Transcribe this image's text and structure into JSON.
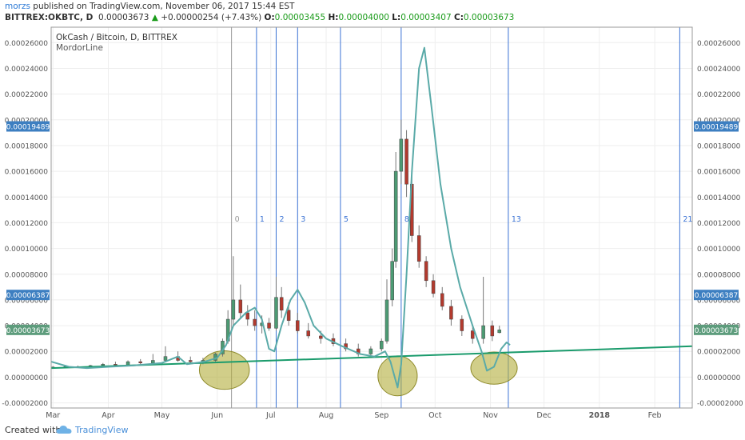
{
  "header": {
    "author": "morzs",
    "published_text": "published on TradingView.com, November 06, 2017 15:44 EST",
    "symbol": "BITTREX:OKBTC, D",
    "last": "0.00003673",
    "change": "+0.00000254 (+7.43%)",
    "o_label": "O:",
    "o": "0.00003455",
    "h_label": "H:",
    "h": "0.00004000",
    "l_label": "L:",
    "l": "0.00003407",
    "c_label": "C:",
    "c": "0.00003673"
  },
  "footer": {
    "created_with": "Created with",
    "brand": "TradingView"
  },
  "chart_data": {
    "type": "candlestick",
    "title": "OkCash / Bitcoin, D, BITTREX",
    "subtitle": "MordorLine",
    "ylim": [
      -2.4e-05,
      0.000272
    ],
    "y_ticks": [
      "-0.00002000",
      "0.00000000",
      "0.00002000",
      "0.00004000",
      "0.00006000",
      "0.00008000",
      "0.00010000",
      "0.00012000",
      "0.00014000",
      "0.00016000",
      "0.00018000",
      "0.00020000",
      "0.00022000",
      "0.00024000",
      "0.00026000"
    ],
    "y_tick_values": [
      -2e-05,
      0,
      2e-05,
      4e-05,
      6e-05,
      8e-05,
      0.0001,
      0.00012,
      0.00014,
      0.00016,
      0.00018,
      0.0002,
      0.00022,
      0.00024,
      0.00026
    ],
    "x_ticks": [
      "Mar",
      "Apr",
      "May",
      "Jun",
      "Jul",
      "Aug",
      "Sep",
      "Oct",
      "Nov",
      "Dec",
      "2018",
      "Feb"
    ],
    "x_tick_dates": [
      "2017-03-01",
      "2017-04-01",
      "2017-05-01",
      "2017-06-01",
      "2017-07-01",
      "2017-08-01",
      "2017-09-01",
      "2017-10-01",
      "2017-11-01",
      "2017-12-01",
      "2018-01-01",
      "2018-02-01"
    ],
    "x_range": [
      "2017-02-28",
      "2018-02-22"
    ],
    "price_labels": [
      {
        "text": "0.00019489",
        "value": 0.00019489,
        "color": "#3d7fc1"
      },
      {
        "text": "0.00006387",
        "value": 6.387e-05,
        "color": "#3d7fc1"
      },
      {
        "text": "0.00003673",
        "value": 3.673e-05,
        "color": "#5d9c7c"
      }
    ],
    "fib_lines": [
      {
        "label": "0",
        "date": "2017-06-09",
        "color": "#999999"
      },
      {
        "label": "1",
        "date": "2017-06-23",
        "color": "#3b73d4"
      },
      {
        "label": "2",
        "date": "2017-07-04",
        "color": "#3b73d4"
      },
      {
        "label": "3",
        "date": "2017-07-16",
        "color": "#3b73d4"
      },
      {
        "label": "5",
        "date": "2017-08-09",
        "color": "#3b73d4"
      },
      {
        "label": "8",
        "date": "2017-09-12",
        "color": "#3b73d4"
      },
      {
        "label": "13",
        "date": "2017-11-11",
        "color": "#3b73d4"
      },
      {
        "label": "21",
        "date": "2018-02-15",
        "color": "#3b73d4"
      }
    ],
    "trendline": {
      "start": [
        "2017-02-28",
        7e-06
      ],
      "end": [
        "2018-02-22",
        2.4e-05
      ],
      "color": "#1a9b6c"
    },
    "ellipses": [
      {
        "center": [
          "2017-06-05",
          5.5e-06
        ],
        "rx_days": 14,
        "ry": 1.5e-05
      },
      {
        "center": [
          "2017-09-10",
          1e-06
        ],
        "rx_days": 11,
        "ry": 1.55e-05
      },
      {
        "center": [
          "2017-11-03",
          7e-06
        ],
        "rx_days": 13,
        "ry": 1.25e-05
      }
    ],
    "indicator": {
      "name": "MordorLine",
      "color": "#5aaaa8",
      "points": [
        [
          "2017-02-28",
          1.2e-05
        ],
        [
          "2017-03-10",
          8e-06
        ],
        [
          "2017-03-20",
          7e-06
        ],
        [
          "2017-04-01",
          8e-06
        ],
        [
          "2017-04-15",
          9e-06
        ],
        [
          "2017-05-01",
          1.1e-05
        ],
        [
          "2017-05-10",
          1.6e-05
        ],
        [
          "2017-05-15",
          1e-05
        ],
        [
          "2017-05-25",
          1.2e-05
        ],
        [
          "2017-06-01",
          1.5e-05
        ],
        [
          "2017-06-06",
          2.5e-05
        ],
        [
          "2017-06-10",
          4e-05
        ],
        [
          "2017-06-17",
          5e-05
        ],
        [
          "2017-06-22",
          5.4e-05
        ],
        [
          "2017-06-26",
          4.5e-05
        ],
        [
          "2017-06-30",
          2.2e-05
        ],
        [
          "2017-07-03",
          2e-05
        ],
        [
          "2017-07-07",
          4e-05
        ],
        [
          "2017-07-12",
          6e-05
        ],
        [
          "2017-07-16",
          6.8e-05
        ],
        [
          "2017-07-20",
          5.8e-05
        ],
        [
          "2017-07-25",
          4e-05
        ],
        [
          "2017-08-01",
          3e-05
        ],
        [
          "2017-08-10",
          2.4e-05
        ],
        [
          "2017-08-20",
          1.8e-05
        ],
        [
          "2017-08-28",
          1.6e-05
        ],
        [
          "2017-09-03",
          2e-05
        ],
        [
          "2017-09-06",
          1.2e-05
        ],
        [
          "2017-09-08",
          2e-06
        ],
        [
          "2017-09-10",
          -8e-06
        ],
        [
          "2017-09-12",
          1e-05
        ],
        [
          "2017-09-15",
          8e-05
        ],
        [
          "2017-09-18",
          0.00016
        ],
        [
          "2017-09-22",
          0.00024
        ],
        [
          "2017-09-25",
          0.000256
        ],
        [
          "2017-09-29",
          0.00021
        ],
        [
          "2017-10-04",
          0.00015
        ],
        [
          "2017-10-10",
          0.0001
        ],
        [
          "2017-10-15",
          7e-05
        ],
        [
          "2017-10-22",
          4e-05
        ],
        [
          "2017-10-27",
          2e-05
        ],
        [
          "2017-10-30",
          5e-06
        ],
        [
          "2017-11-03",
          8e-06
        ],
        [
          "2017-11-07",
          2.2e-05
        ],
        [
          "2017-11-10",
          2.7e-05
        ],
        [
          "2017-11-12",
          2.5e-05
        ]
      ]
    },
    "candles_series": [
      [
        "2017-03-01",
        7.8e-06,
        8.5e-06,
        7e-06,
        7.5e-06
      ],
      [
        "2017-03-08",
        7.5e-06,
        9e-06,
        7e-06,
        8.2e-06
      ],
      [
        "2017-03-15",
        8.2e-06,
        9e-06,
        7.2e-06,
        7.6e-06
      ],
      [
        "2017-03-22",
        7.6e-06,
        9.5e-06,
        7e-06,
        9e-06
      ],
      [
        "2017-03-29",
        9e-06,
        1.1e-05,
        8.5e-06,
        1e-05
      ],
      [
        "2017-04-05",
        1e-05,
        1.2e-05,
        8.8e-06,
        9.5e-06
      ],
      [
        "2017-04-12",
        9.5e-06,
        1.3e-05,
        9e-06,
        1.2e-05
      ],
      [
        "2017-04-19",
        1.2e-05,
        1.4e-05,
        1e-05,
        1.1e-05
      ],
      [
        "2017-04-26",
        1.1e-05,
        1.8e-05,
        1e-05,
        1.3e-05
      ],
      [
        "2017-05-03",
        1.3e-05,
        2.4e-05,
        1.2e-05,
        1.6e-05
      ],
      [
        "2017-05-10",
        1.6e-05,
        2e-05,
        1.2e-05,
        1.3e-05
      ],
      [
        "2017-05-17",
        1.3e-05,
        1.6e-05,
        1.1e-05,
        1.2e-05
      ],
      [
        "2017-05-24",
        1.2e-05,
        1.5e-05,
        1e-05,
        1.3e-05
      ],
      [
        "2017-05-31",
        1.3e-05,
        1.9e-05,
        1.2e-05,
        1.8e-05
      ],
      [
        "2017-06-04",
        1.8e-05,
        3e-05,
        1.6e-05,
        2.8e-05
      ],
      [
        "2017-06-07",
        2.8e-05,
        5.2e-05,
        2.6e-05,
        4.5e-05
      ],
      [
        "2017-06-10",
        4.5e-05,
        9.4e-05,
        4e-05,
        6e-05
      ],
      [
        "2017-06-14",
        6e-05,
        7.2e-05,
        4.5e-05,
        5e-05
      ],
      [
        "2017-06-18",
        5e-05,
        5.6e-05,
        4e-05,
        4.5e-05
      ],
      [
        "2017-06-22",
        4.5e-05,
        5.2e-05,
        3.6e-05,
        4e-05
      ],
      [
        "2017-06-26",
        4e-05,
        4.8e-05,
        3.4e-05,
        4.2e-05
      ],
      [
        "2017-06-30",
        4.2e-05,
        4.6e-05,
        3.6e-05,
        3.8e-05
      ],
      [
        "2017-07-04",
        3.8e-05,
        7.8e-05,
        3.6e-05,
        6.2e-05
      ],
      [
        "2017-07-07",
        6.2e-05,
        7e-05,
        4.6e-05,
        5.2e-05
      ],
      [
        "2017-07-11",
        5.2e-05,
        5.8e-05,
        4e-05,
        4.4e-05
      ],
      [
        "2017-07-16",
        4.4e-05,
        5e-05,
        3.4e-05,
        3.6e-05
      ],
      [
        "2017-07-22",
        3.6e-05,
        4.2e-05,
        3e-05,
        3.2e-05
      ],
      [
        "2017-07-29",
        3.2e-05,
        3.6e-05,
        2.6e-05,
        3e-05
      ],
      [
        "2017-08-05",
        3e-05,
        3.4e-05,
        2.4e-05,
        2.6e-05
      ],
      [
        "2017-08-12",
        2.6e-05,
        3e-05,
        2e-05,
        2.2e-05
      ],
      [
        "2017-08-19",
        2.2e-05,
        2.6e-05,
        1.6e-05,
        1.8e-05
      ],
      [
        "2017-08-26",
        1.8e-05,
        2.4e-05,
        1.6e-05,
        2.2e-05
      ],
      [
        "2017-09-01",
        2.2e-05,
        3e-05,
        2e-05,
        2.8e-05
      ],
      [
        "2017-09-04",
        2.8e-05,
        7.6e-05,
        2.6e-05,
        6e-05
      ],
      [
        "2017-09-07",
        6e-05,
        0.0001,
        5.5e-05,
        9e-05
      ],
      [
        "2017-09-09",
        9e-05,
        0.000175,
        8.5e-05,
        0.00016
      ],
      [
        "2017-09-12",
        0.00016,
        0.0002,
        0.00015,
        0.000185
      ],
      [
        "2017-09-15",
        0.000185,
        0.000192,
        0.00014,
        0.00015
      ],
      [
        "2017-09-18",
        0.00015,
        0.000158,
        0.000105,
        0.00011
      ],
      [
        "2017-09-22",
        0.00011,
        0.000118,
        8.5e-05,
        9e-05
      ],
      [
        "2017-09-26",
        9e-05,
        9.4e-05,
        7e-05,
        7.5e-05
      ],
      [
        "2017-09-30",
        7.5e-05,
        8e-05,
        6.2e-05,
        6.5e-05
      ],
      [
        "2017-10-05",
        6.5e-05,
        7e-05,
        5.2e-05,
        5.5e-05
      ],
      [
        "2017-10-10",
        5.5e-05,
        6e-05,
        4e-05,
        4.5e-05
      ],
      [
        "2017-10-16",
        4.5e-05,
        4.8e-05,
        3.2e-05,
        3.6e-05
      ],
      [
        "2017-10-22",
        3.6e-05,
        4e-05,
        2.6e-05,
        3e-05
      ],
      [
        "2017-10-28",
        3e-05,
        7.8e-05,
        2.6e-05,
        4e-05
      ],
      [
        "2017-11-02",
        4e-05,
        4.4e-05,
        2.8e-05,
        3.2e-05
      ],
      [
        "2017-11-06",
        3.455e-05,
        4e-05,
        3.407e-05,
        3.673e-05
      ]
    ],
    "legend": "none",
    "grid": true
  }
}
